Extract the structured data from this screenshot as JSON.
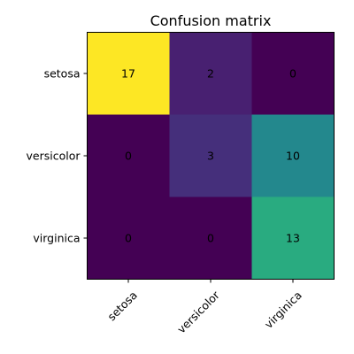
{
  "chart_data": {
    "type": "heatmap",
    "title": "Confusion matrix",
    "x_categories": [
      "setosa",
      "versicolor",
      "virginica"
    ],
    "y_categories": [
      "setosa",
      "versicolor",
      "virginica"
    ],
    "values": [
      [
        17,
        2,
        0
      ],
      [
        0,
        3,
        10
      ],
      [
        0,
        0,
        13
      ]
    ],
    "colormap": "viridis",
    "value_range": [
      0,
      17
    ]
  }
}
